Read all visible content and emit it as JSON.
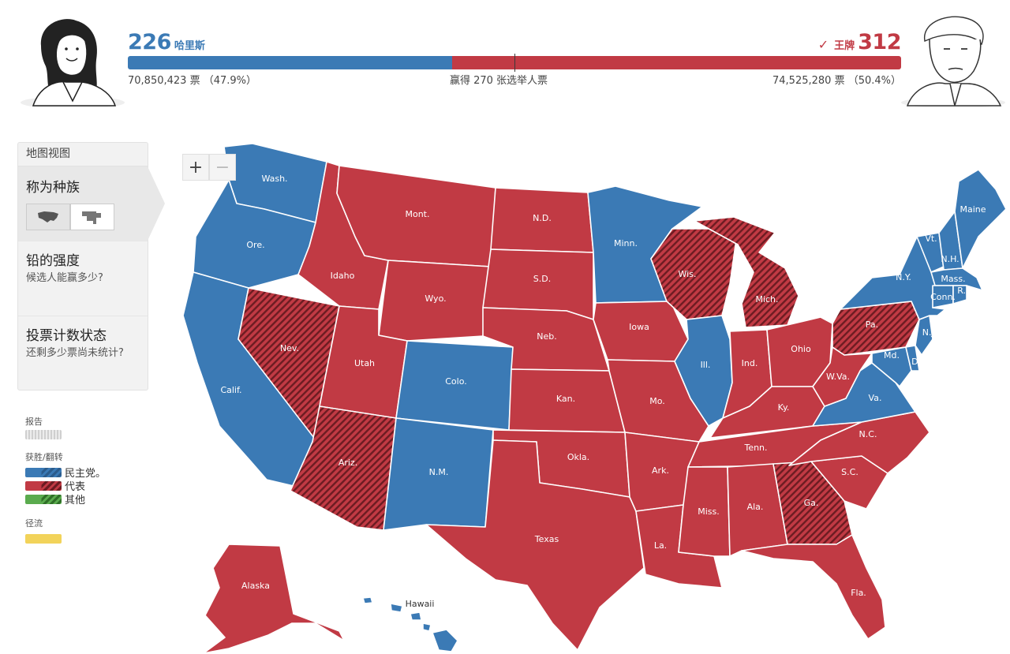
{
  "summary": {
    "dem": {
      "electoral_votes": "226",
      "name": "哈里斯",
      "popular_votes": "70,850,423 票 （47.9%）",
      "ev_share": 0.419
    },
    "rep": {
      "electoral_votes": "312",
      "name": "王牌",
      "popular_votes": "74,525,280 票 （50.4%）",
      "ev_share": 0.581,
      "winner_check": "✓"
    },
    "threshold_text": "赢得 270 张选举人票",
    "threshold_fraction": 0.5
  },
  "panel": {
    "header": "地图视图",
    "items": [
      {
        "title": "称为种族",
        "subtitle": ""
      },
      {
        "title": "铅的强度",
        "subtitle": "候选人能赢多少?"
      },
      {
        "title": "投票计数状态",
        "subtitle": "还剩多少票尚未统计?"
      }
    ]
  },
  "legend": {
    "report": "报告",
    "win_flip": "获胜/翻转",
    "dem": "民主党。",
    "rep": "代表",
    "other": "其他",
    "flow": "径流"
  },
  "zoom": {
    "in": "+",
    "out": "−"
  },
  "colors": {
    "dem": "#3b7ab5",
    "rep": "#c13a44",
    "dem_flip": "#2c5c8c",
    "rep_flip": "#6c1c22",
    "other": "#5aab4e",
    "flow": "#f2d35a"
  },
  "states": {
    "wash": "Wash.",
    "ore": "Ore.",
    "calif": "Calif.",
    "nev": "Nev.",
    "idaho": "Idaho",
    "mont": "Mont.",
    "wyo": "Wyo.",
    "utah": "Utah",
    "ariz": "Ariz.",
    "colo": "Colo.",
    "nm": "N.M.",
    "nd": "N.D.",
    "sd": "S.D.",
    "neb": "Neb.",
    "kan": "Kan.",
    "okla": "Okla.",
    "texas": "Texas",
    "minn": "Minn.",
    "iowa": "Iowa",
    "mo": "Mo.",
    "ark": "Ark.",
    "la": "La.",
    "wis": "Wis.",
    "ill": "Ill.",
    "mich": "Mich.",
    "ind": "Ind.",
    "ohio": "Ohio",
    "ky": "Ky.",
    "tenn": "Tenn.",
    "miss": "Miss.",
    "ala": "Ala.",
    "ga": "Ga.",
    "fla": "Fla.",
    "sc": "S.C.",
    "nc": "N.C.",
    "va": "Va.",
    "wva": "W.Va.",
    "pa": "Pa.",
    "ny": "N.Y.",
    "vt": "Vt.",
    "nh": "N.H.",
    "maine": "Maine",
    "mass": "Mass.",
    "ri": "R.I.",
    "conn": "Conn.",
    "nj": "N.J.",
    "del": "Del.",
    "md": "Md.",
    "alaska": "Alaska",
    "hawaii": "Hawaii"
  }
}
